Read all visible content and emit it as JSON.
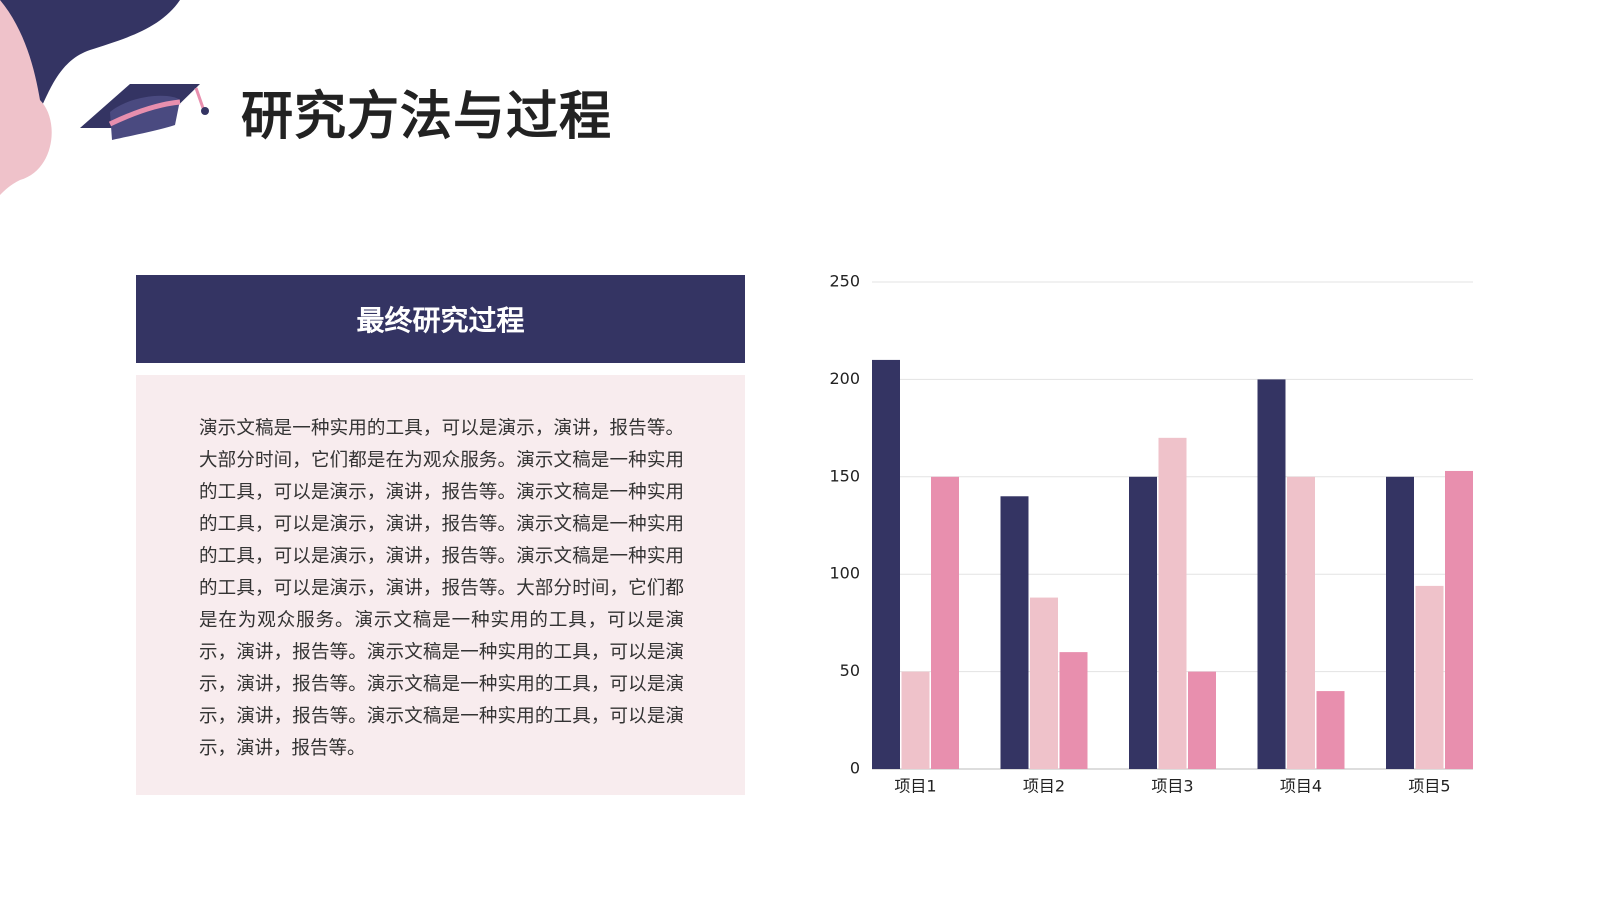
{
  "title": "研究方法与过程",
  "panel": {
    "heading": "最终研究过程",
    "body": "演示文稿是一种实用的工具，可以是演示，演讲，报告等。大部分时间，它们都是在为观众服务。演示文稿是一种实用的工具，可以是演示，演讲，报告等。演示文稿是一种实用的工具，可以是演示，演讲，报告等。演示文稿是一种实用的工具，可以是演示，演讲，报告等。演示文稿是一种实用的工具，可以是演示，演讲，报告等。大部分时间，它们都是在为观众服务。演示文稿是一种实用的工具，可以是演示，演讲，报告等。演示文稿是一种实用的工具，可以是演示，演讲，报告等。演示文稿是一种实用的工具，可以是演示，演讲，报告等。演示文稿是一种实用的工具，可以是演示，演讲，报告等。"
  },
  "chart_data": {
    "type": "bar",
    "categories": [
      "项目1",
      "项目2",
      "项目3",
      "项目4",
      "项目5"
    ],
    "series": [
      {
        "color": "#343463",
        "values": [
          210,
          140,
          150,
          200,
          150
        ]
      },
      {
        "color": "#efc2ca",
        "values": [
          50,
          88,
          170,
          150,
          94
        ]
      },
      {
        "color": "#e88fae",
        "values": [
          150,
          60,
          50,
          40,
          153
        ]
      }
    ],
    "ylim": [
      0,
      250
    ],
    "yticks": [
      0,
      50,
      100,
      150,
      200,
      250
    ],
    "grid": true
  }
}
